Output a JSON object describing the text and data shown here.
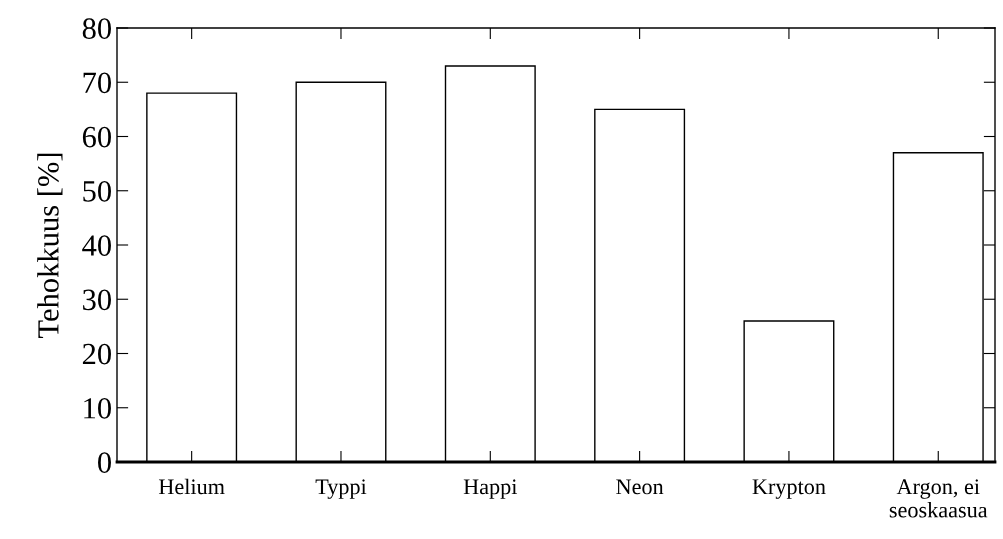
{
  "chart_data": {
    "type": "bar",
    "ylabel": "Tehokkuus [%]",
    "categories": [
      "Helium",
      "Typpi",
      "Happi",
      "Neon",
      "Krypton",
      "Argon, ei\nseoskaasua"
    ],
    "values": [
      68,
      70,
      73,
      65,
      26,
      57
    ],
    "color": "#ffffff",
    "ylim": [
      0,
      80
    ],
    "yticks": [
      0,
      10,
      20,
      30,
      40,
      50,
      60,
      70,
      80
    ],
    "grid": false
  }
}
